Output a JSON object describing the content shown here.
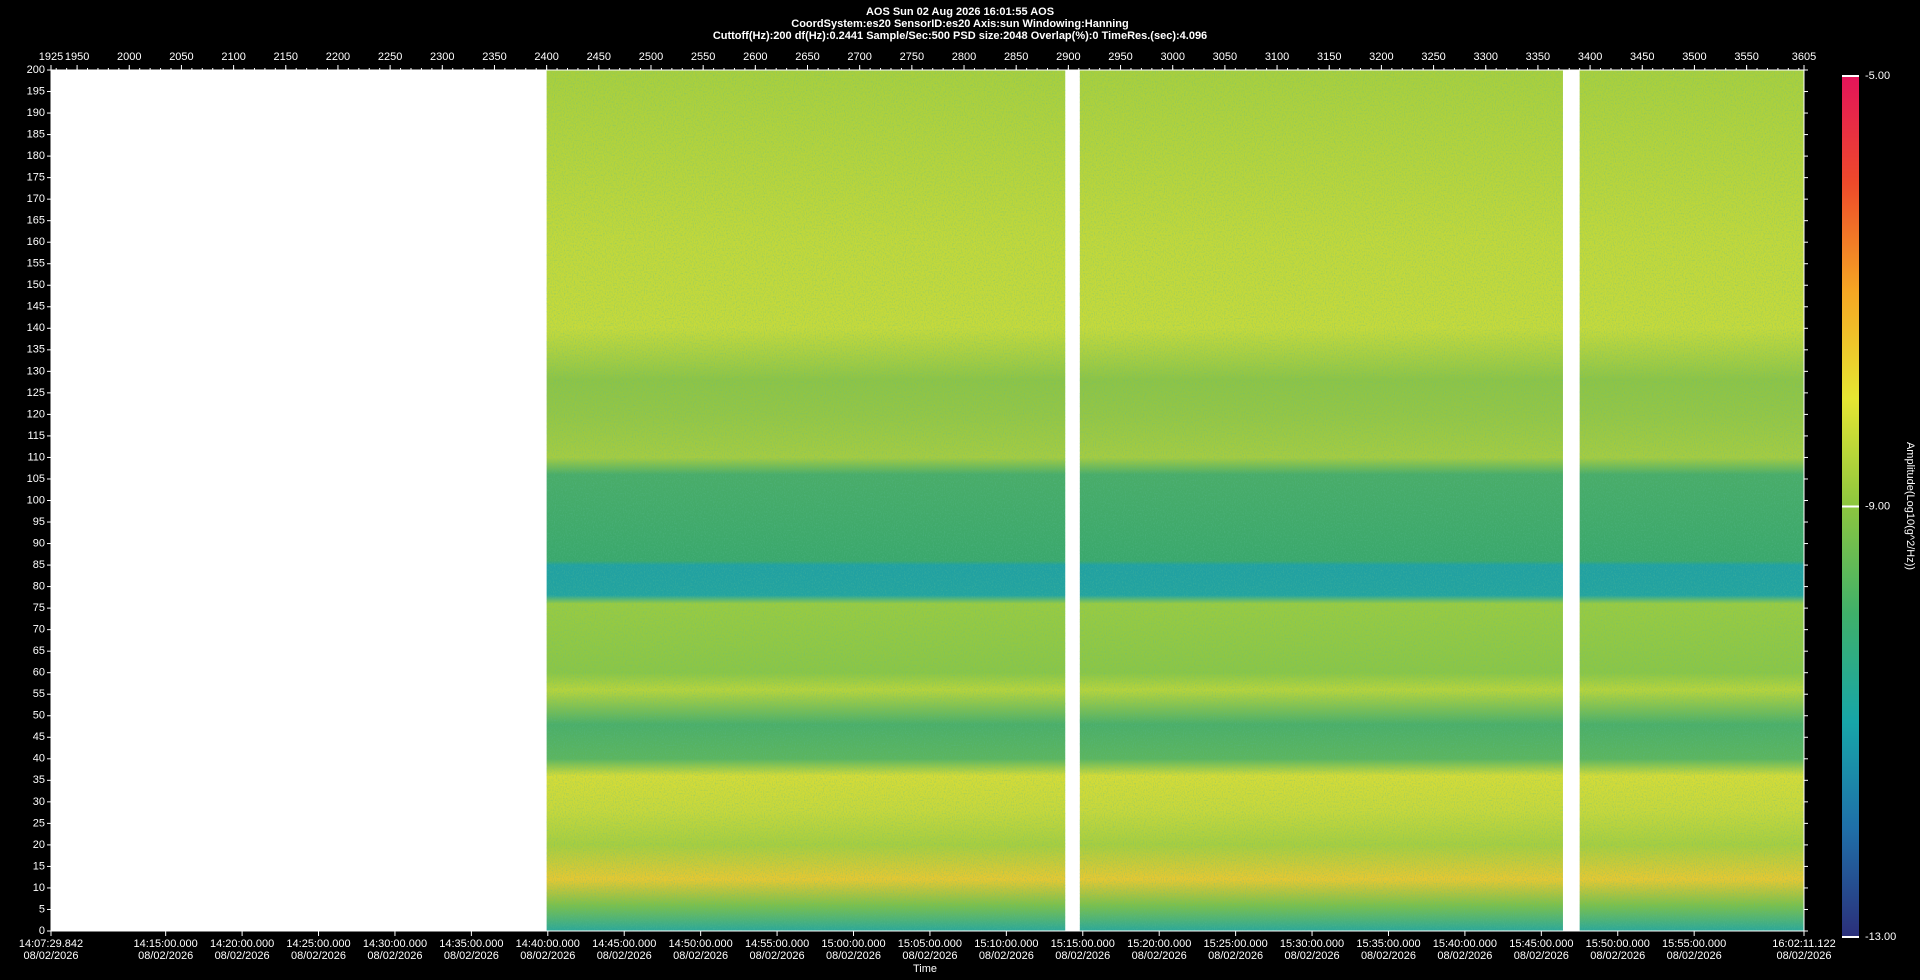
{
  "chart_data": {
    "type": "spectrogram",
    "title_lines": [
      "AOS  Sun 02 Aug 2026 16:01:55  AOS",
      "CoordSystem:es20   SensorID:es20   Axis:sun   Windowing:Hanning",
      "Cuttoff(Hz):200      df(Hz):0.2441      Sample/Sec:500      PSD size:2048      Overlap(%):0      TimeRes.(sec):4.096"
    ],
    "xlim": [
      1925,
      3605
    ],
    "xticks": [
      1925,
      1950,
      2000,
      2050,
      2100,
      2150,
      2200,
      2250,
      2300,
      2350,
      2400,
      2450,
      2500,
      2550,
      2600,
      2650,
      2700,
      2750,
      2800,
      2850,
      2900,
      2950,
      3000,
      3050,
      3100,
      3150,
      3200,
      3250,
      3300,
      3350,
      3400,
      3450,
      3500,
      3550,
      3605
    ],
    "x2label": "Time",
    "x2lim": [
      50849.842,
      57731.122
    ],
    "x2ticks": [
      {
        "value": 50849.842,
        "label": "14:07:29.842",
        "date": "08/02/2026"
      },
      {
        "value": 51300,
        "label": "14:15:00.000",
        "date": "08/02/2026"
      },
      {
        "value": 51600,
        "label": "14:20:00.000",
        "date": "08/02/2026"
      },
      {
        "value": 51900,
        "label": "14:25:00.000",
        "date": "08/02/2026"
      },
      {
        "value": 52200,
        "label": "14:30:00.000",
        "date": "08/02/2026"
      },
      {
        "value": 52500,
        "label": "14:35:00.000",
        "date": "08/02/2026"
      },
      {
        "value": 52800,
        "label": "14:40:00.000",
        "date": "08/02/2026"
      },
      {
        "value": 53100,
        "label": "14:45:00.000",
        "date": "08/02/2026"
      },
      {
        "value": 53400,
        "label": "14:50:00.000",
        "date": "08/02/2026"
      },
      {
        "value": 53700,
        "label": "14:55:00.000",
        "date": "08/02/2026"
      },
      {
        "value": 54000,
        "label": "15:00:00.000",
        "date": "08/02/2026"
      },
      {
        "value": 54300,
        "label": "15:05:00.000",
        "date": "08/02/2026"
      },
      {
        "value": 54600,
        "label": "15:10:00.000",
        "date": "08/02/2026"
      },
      {
        "value": 54900,
        "label": "15:15:00.000",
        "date": "08/02/2026"
      },
      {
        "value": 55200,
        "label": "15:20:00.000",
        "date": "08/02/2026"
      },
      {
        "value": 55500,
        "label": "15:25:00.000",
        "date": "08/02/2026"
      },
      {
        "value": 55800,
        "label": "15:30:00.000",
        "date": "08/02/2026"
      },
      {
        "value": 56100,
        "label": "15:35:00.000",
        "date": "08/02/2026"
      },
      {
        "value": 56400,
        "label": "15:40:00.000",
        "date": "08/02/2026"
      },
      {
        "value": 56700,
        "label": "15:45:00.000",
        "date": "08/02/2026"
      },
      {
        "value": 57000,
        "label": "15:50:00.000",
        "date": "08/02/2026"
      },
      {
        "value": 57300,
        "label": "15:55:00.000",
        "date": "08/02/2026"
      },
      {
        "value": 57731.122,
        "label": "16:02:11.122",
        "date": "08/02/2026"
      }
    ],
    "ylim": [
      0,
      200
    ],
    "yticks": [
      0,
      5,
      10,
      15,
      20,
      25,
      30,
      35,
      40,
      45,
      50,
      55,
      60,
      65,
      70,
      75,
      80,
      85,
      90,
      95,
      100,
      105,
      110,
      115,
      120,
      125,
      130,
      135,
      140,
      145,
      150,
      155,
      160,
      165,
      170,
      175,
      180,
      185,
      190,
      195,
      200
    ],
    "segments": [
      [
        2400,
        2897
      ],
      [
        2911,
        3374
      ],
      [
        3390,
        3605
      ]
    ],
    "colorbar": {
      "label": "Amplitude(Log10(g^2/Hz))",
      "lim": [
        -13,
        -5
      ],
      "ticks": [
        {
          "value": -5,
          "label": "-5.00"
        },
        {
          "value": -9,
          "label": "-9.00"
        },
        {
          "value": -13,
          "label": "-13.00"
        }
      ],
      "colors": [
        "#2b2f7a",
        "#1f6fa8",
        "#17a6a8",
        "#3fb06a",
        "#8cc63f",
        "#e6e632",
        "#f5a623",
        "#ee4a2a",
        "#e3145a"
      ]
    }
  }
}
